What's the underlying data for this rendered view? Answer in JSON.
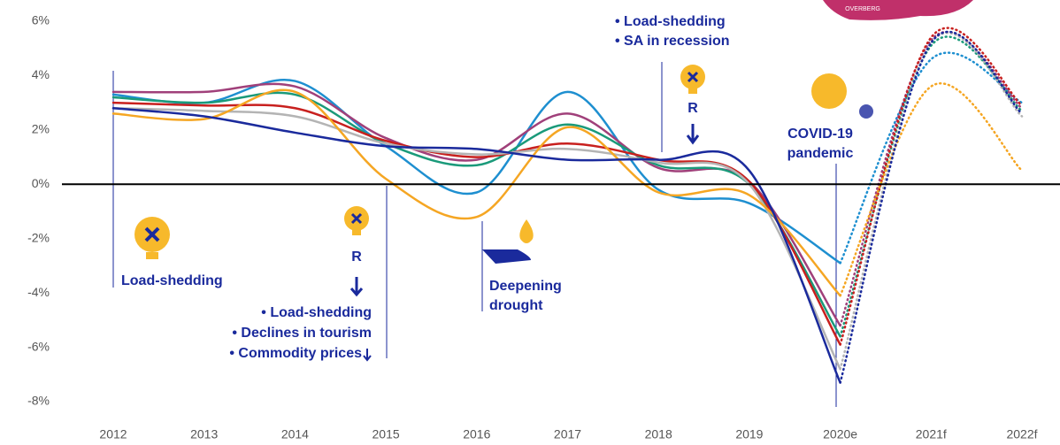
{
  "chart_data": {
    "type": "line",
    "categories": [
      "2012",
      "2013",
      "2014",
      "2015",
      "2016",
      "2017",
      "2018",
      "2019",
      "2020e",
      "2021f",
      "2022f"
    ],
    "forecast_from": "2020e",
    "series": [
      {
        "color": "#1e8fd0",
        "values": [
          3.3,
          3.0,
          3.8,
          1.4,
          -0.3,
          3.4,
          -0.2,
          -0.7,
          -2.9,
          4.6,
          3.0
        ]
      },
      {
        "color": "#a0407a",
        "values": [
          3.4,
          3.4,
          3.6,
          1.7,
          0.9,
          2.6,
          0.6,
          0.1,
          -5.2,
          5.3,
          2.8
        ]
      },
      {
        "color": "#1a9a7a",
        "values": [
          3.2,
          3.0,
          3.3,
          1.5,
          0.7,
          2.2,
          0.7,
          0.0,
          -5.6,
          5.1,
          2.7
        ]
      },
      {
        "color": "#c8201e",
        "values": [
          3.0,
          2.9,
          2.8,
          1.6,
          1.0,
          1.5,
          0.9,
          0.1,
          -5.9,
          5.4,
          2.9
        ]
      },
      {
        "color": "#b4b4b4",
        "values": [
          2.8,
          2.7,
          2.5,
          1.5,
          1.1,
          1.3,
          0.8,
          0.0,
          -6.8,
          5.2,
          2.5
        ]
      },
      {
        "color": "#f5a623",
        "values": [
          2.6,
          2.4,
          3.4,
          0.2,
          -1.2,
          2.1,
          -0.3,
          -0.4,
          -4.1,
          3.6,
          0.5
        ]
      },
      {
        "color": "#1a2a9c",
        "values": [
          2.8,
          2.5,
          1.9,
          1.4,
          1.3,
          0.9,
          0.9,
          0.5,
          -7.3,
          5.2,
          2.6
        ]
      }
    ],
    "ylim": [
      -8,
      6
    ],
    "yticks": [
      {
        "value": 6,
        "label": "6%"
      },
      {
        "value": 4,
        "label": "4%"
      },
      {
        "value": 2,
        "label": "2%"
      },
      {
        "value": 0,
        "label": "0%"
      },
      {
        "value": -2,
        "label": "-2%"
      },
      {
        "value": -4,
        "label": "-4%"
      },
      {
        "value": -6,
        "label": "-6%"
      },
      {
        "value": -8,
        "label": "-8%"
      }
    ],
    "grid": false,
    "annotations": {
      "a2012": "Load-shedding",
      "a2015_r": "R",
      "a2015": [
        "• Load-shedding",
        "• Declines in tourism",
        "• Commodity prices"
      ],
      "a2016": [
        "Deepening",
        "drought"
      ],
      "a2018": [
        "• Load-shedding",
        "• SA in recession"
      ],
      "a2018_r": "R",
      "a2020": [
        "COVID-19",
        "pandemic"
      ],
      "map": "OVERBERG"
    }
  }
}
